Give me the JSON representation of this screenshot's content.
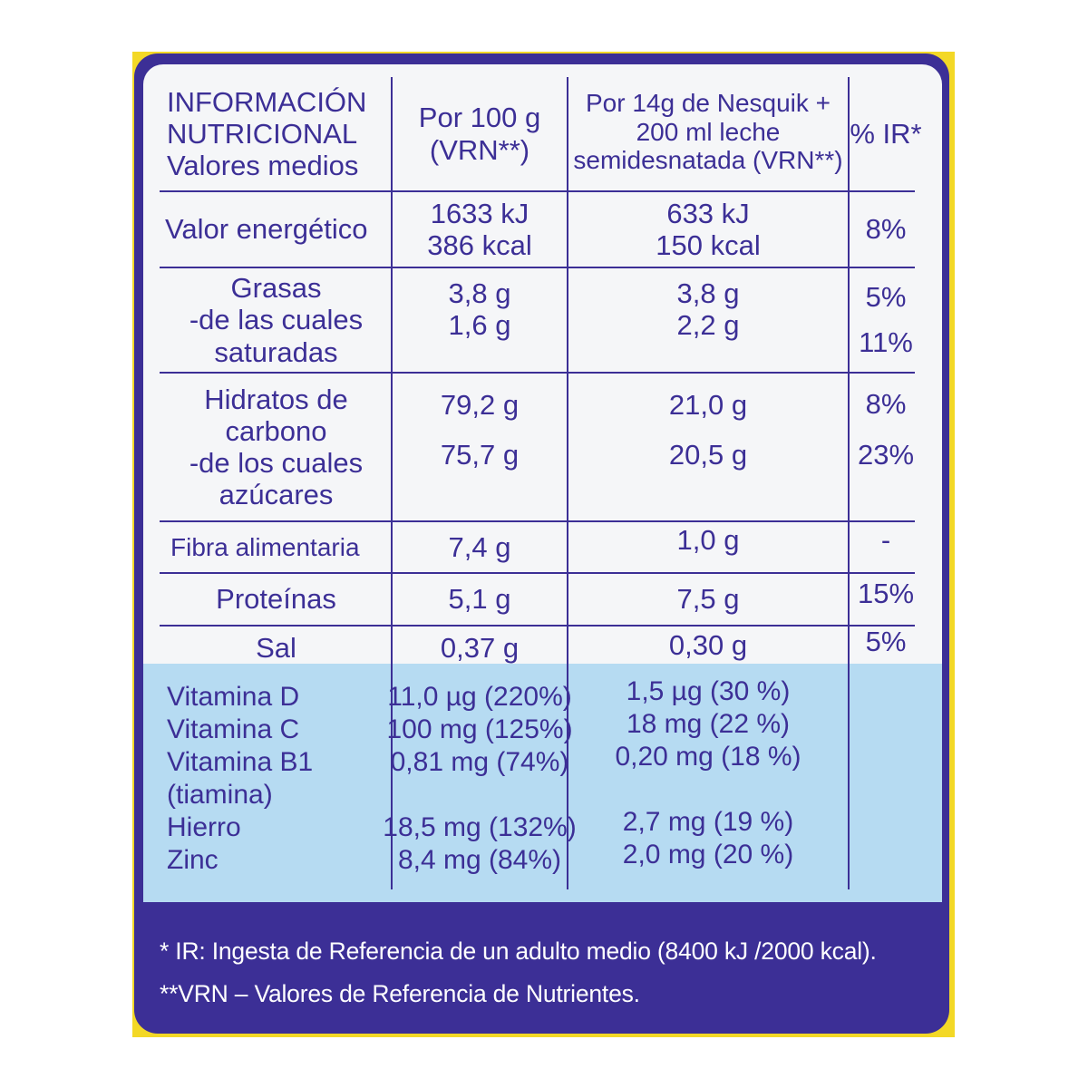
{
  "header": {
    "col1": [
      "INFORMACIÓN",
      "NUTRICIONAL",
      "Valores medios"
    ],
    "col2": [
      "Por 100 g",
      "(VRN**)"
    ],
    "col3": [
      "Por 14g de Nesquik +",
      "200 ml leche",
      "semidesnatada (VRN**)"
    ],
    "col4": "% IR*"
  },
  "rows": {
    "energy": {
      "label": "Valor energético",
      "per100": [
        "1633 kJ",
        "386 kcal"
      ],
      "serving": [
        "633 kJ",
        "150 kcal"
      ],
      "ir": "8%"
    },
    "fat": {
      "label": "Grasas",
      "sublabel": [
        "-de las cuales",
        "saturadas"
      ],
      "per100": [
        "3,8 g",
        "1,6 g"
      ],
      "serving": [
        "3,8 g",
        "2,2 g"
      ],
      "ir": [
        "5%",
        "11%"
      ]
    },
    "carbs": {
      "label": [
        "Hidratos de",
        "carbono"
      ],
      "sublabel": [
        "-de los cuales",
        "azúcares"
      ],
      "per100": [
        "79,2 g",
        "75,7 g"
      ],
      "serving": [
        "21,0 g",
        "20,5 g"
      ],
      "ir": [
        "8%",
        "23%"
      ]
    },
    "fiber": {
      "label": "Fibra alimentaria",
      "per100": "7,4 g",
      "serving": "1,0 g",
      "ir": "-"
    },
    "protein": {
      "label": "Proteínas",
      "per100": "5,1 g",
      "serving": "7,5 g",
      "ir": "15%"
    },
    "salt": {
      "label": "Sal",
      "per100": "0,37 g",
      "serving": "0,30 g",
      "ir": "5%"
    }
  },
  "vitamins": {
    "labels": [
      "Vitamina D",
      "Vitamina C",
      "Vitamina B1",
      "(tiamina)",
      "Hierro",
      "Zinc"
    ],
    "per100": [
      "11,0 µg (220%)",
      "100 mg (125%)",
      "0,81 mg (74%)",
      "18,5 mg (132%)",
      "8,4 mg (84%)"
    ],
    "serving": [
      "1,5 µg (30 %)",
      "18 mg (22 %)",
      "0,20 mg (18 %)",
      "2,7 mg (19 %)",
      "2,0 mg (20 %)"
    ]
  },
  "footnotes": {
    "ir": "* IR: Ingesta de Referencia de un adulto medio (8400 kJ /2000 kcal).",
    "vrn": "**VRN – Valores de Referencia de Nutrientes."
  },
  "colors": {
    "ink": "#3c2f96",
    "panel": "#f5f6f8",
    "band": "#b6dbf2",
    "pack": "#f3d826"
  }
}
